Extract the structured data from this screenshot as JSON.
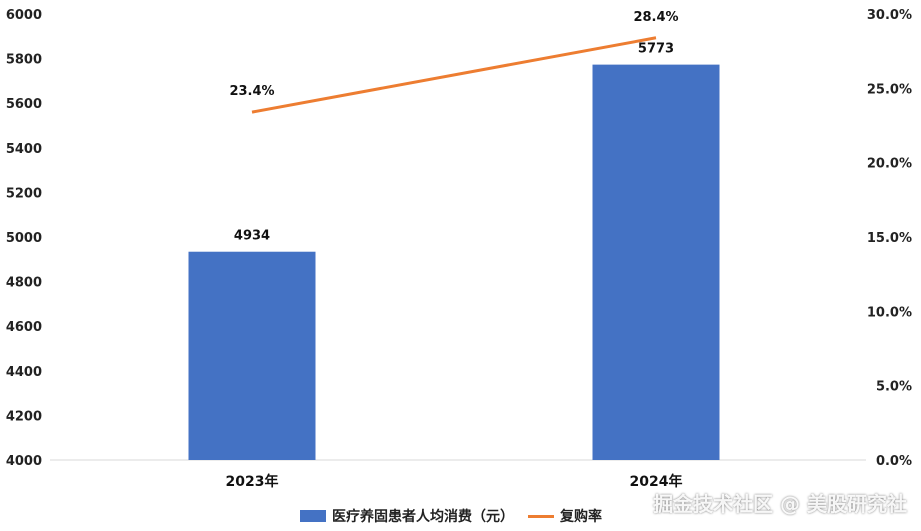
{
  "chart_data": {
    "type": "bar",
    "categories": [
      "2023年",
      "2024年"
    ],
    "series": [
      {
        "name": "医疗养固患者人均消费（元）",
        "type": "bar",
        "axis": "left",
        "values": [
          4934,
          5773
        ],
        "color": "#4472C4"
      },
      {
        "name": "复购率",
        "type": "line",
        "axis": "right",
        "values": [
          23.4,
          28.4
        ],
        "color": "#ED7D31"
      }
    ],
    "data_labels": {
      "bars": [
        "4934",
        "5773"
      ],
      "line": [
        "23.4%",
        "28.4%"
      ]
    },
    "y_left": {
      "min": 4000,
      "max": 6000,
      "ticks": [
        "4000",
        "4200",
        "4400",
        "4600",
        "4800",
        "5000",
        "5200",
        "5400",
        "5600",
        "5800",
        "6000"
      ]
    },
    "y_right": {
      "min": 0,
      "max": 30,
      "ticks": [
        "0.0%",
        "5.0%",
        "10.0%",
        "15.0%",
        "20.0%",
        "25.0%",
        "30.0%"
      ]
    },
    "grid": false,
    "legend_position": "bottom"
  },
  "watermark": "掘金技术社区 @ 美股研究社"
}
